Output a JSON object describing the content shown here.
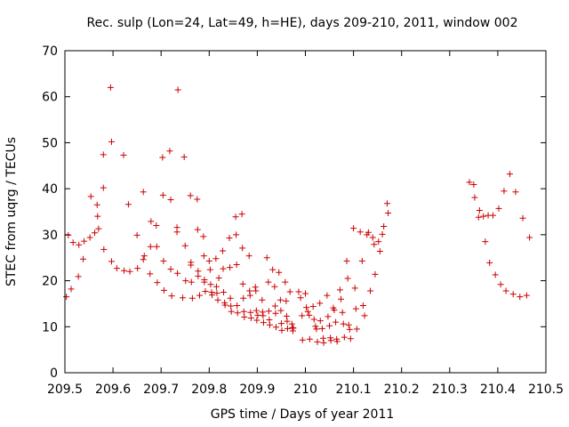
{
  "chart_data": {
    "type": "scatter",
    "title": "Rec. sulp (Lon=24, Lat=49, h=HE), days 209-210, 2011, window 002",
    "xlabel": "GPS time / Days of year 2011",
    "ylabel": "STEC from uqrg / TECUs",
    "xlim": [
      209.5,
      210.5
    ],
    "ylim": [
      0,
      70
    ],
    "x_ticks": [
      "209.5",
      "209.6",
      "209.7",
      "209.8",
      "209.9",
      "210",
      "210.1",
      "210.2",
      "210.3",
      "210.4",
      "210.5"
    ],
    "x_tick_values": [
      209.5,
      209.6,
      209.7,
      209.8,
      209.9,
      210.0,
      210.1,
      210.2,
      210.3,
      210.4,
      210.5
    ],
    "y_ticks": [
      "0",
      "10",
      "20",
      "30",
      "40",
      "50",
      "60",
      "70"
    ],
    "y_tick_values": [
      0,
      10,
      20,
      30,
      40,
      50,
      60,
      70
    ],
    "grid": false,
    "marker": "+",
    "color": "#cc0000",
    "points": [
      [
        209.503,
        16.5
      ],
      [
        209.507,
        29.9
      ],
      [
        209.513,
        18.2
      ],
      [
        209.517,
        28.3
      ],
      [
        209.528,
        20.9
      ],
      [
        209.529,
        27.8
      ],
      [
        209.538,
        24.7
      ],
      [
        209.54,
        28.6
      ],
      [
        209.552,
        29.4
      ],
      [
        209.554,
        38.3
      ],
      [
        209.562,
        30.4
      ],
      [
        209.567,
        36.5
      ],
      [
        209.568,
        34.0
      ],
      [
        209.57,
        31.3
      ],
      [
        209.58,
        40.2
      ],
      [
        209.58,
        47.4
      ],
      [
        209.581,
        26.8
      ],
      [
        209.595,
        62.0
      ],
      [
        209.597,
        50.2
      ],
      [
        209.597,
        24.2
      ],
      [
        209.608,
        22.7
      ],
      [
        209.622,
        47.3
      ],
      [
        209.623,
        22.2
      ],
      [
        209.632,
        36.6
      ],
      [
        209.635,
        22.0
      ],
      [
        209.65,
        29.9
      ],
      [
        209.651,
        22.7
      ],
      [
        209.663,
        39.3
      ],
      [
        209.663,
        24.6
      ],
      [
        209.665,
        25.4
      ],
      [
        209.677,
        21.5
      ],
      [
        209.678,
        27.4
      ],
      [
        209.679,
        32.9
      ],
      [
        209.69,
        32.0
      ],
      [
        209.691,
        27.4
      ],
      [
        209.692,
        19.6
      ],
      [
        209.703,
        46.8
      ],
      [
        209.704,
        38.6
      ],
      [
        209.705,
        24.3
      ],
      [
        209.706,
        17.9
      ],
      [
        209.718,
        48.2
      ],
      [
        209.72,
        37.6
      ],
      [
        209.72,
        22.5
      ],
      [
        209.722,
        16.7
      ],
      [
        209.735,
        61.5
      ],
      [
        209.733,
        31.6
      ],
      [
        209.733,
        30.6
      ],
      [
        209.734,
        21.6
      ],
      [
        209.745,
        16.3
      ],
      [
        209.748,
        46.9
      ],
      [
        209.75,
        27.6
      ],
      [
        209.751,
        20.0
      ],
      [
        209.761,
        38.5
      ],
      [
        209.762,
        24.0
      ],
      [
        209.762,
        23.4
      ],
      [
        209.763,
        19.7
      ],
      [
        209.765,
        16.2
      ],
      [
        209.775,
        37.7
      ],
      [
        209.776,
        31.1
      ],
      [
        209.777,
        22.1
      ],
      [
        209.777,
        21.0
      ],
      [
        209.78,
        16.8
      ],
      [
        209.788,
        29.6
      ],
      [
        209.789,
        25.4
      ],
      [
        209.79,
        20.2
      ],
      [
        209.79,
        19.7
      ],
      [
        209.792,
        17.7
      ],
      [
        209.8,
        24.3
      ],
      [
        209.802,
        22.4
      ],
      [
        209.803,
        19.2
      ],
      [
        209.805,
        17.5
      ],
      [
        209.806,
        16.9
      ],
      [
        209.814,
        24.8
      ],
      [
        209.815,
        18.7
      ],
      [
        209.816,
        17.3
      ],
      [
        209.818,
        15.8
      ],
      [
        209.82,
        20.6
      ],
      [
        209.828,
        26.5
      ],
      [
        209.829,
        22.6
      ],
      [
        209.83,
        17.5
      ],
      [
        209.832,
        15.2
      ],
      [
        209.833,
        14.7
      ],
      [
        209.842,
        29.3
      ],
      [
        209.843,
        22.9
      ],
      [
        209.844,
        16.2
      ],
      [
        209.845,
        14.5
      ],
      [
        209.846,
        13.3
      ],
      [
        209.855,
        33.9
      ],
      [
        209.856,
        30.0
      ],
      [
        209.857,
        23.5
      ],
      [
        209.858,
        14.6
      ],
      [
        209.859,
        13.0
      ],
      [
        209.868,
        34.5
      ],
      [
        209.869,
        27.1
      ],
      [
        209.87,
        19.3
      ],
      [
        209.871,
        16.2
      ],
      [
        209.872,
        13.3
      ],
      [
        209.873,
        12.1
      ],
      [
        209.883,
        25.4
      ],
      [
        209.884,
        17.8
      ],
      [
        209.885,
        16.8
      ],
      [
        209.886,
        13.1
      ],
      [
        209.887,
        11.9
      ],
      [
        209.896,
        18.6
      ],
      [
        209.897,
        17.8
      ],
      [
        209.898,
        13.5
      ],
      [
        209.899,
        11.4
      ],
      [
        209.901,
        12.5
      ],
      [
        209.91,
        15.8
      ],
      [
        209.911,
        13.2
      ],
      [
        209.912,
        12.4
      ],
      [
        209.913,
        10.9
      ],
      [
        209.92,
        25.0
      ],
      [
        209.923,
        19.7
      ],
      [
        209.924,
        13.4
      ],
      [
        209.925,
        11.5
      ],
      [
        209.926,
        10.4
      ],
      [
        209.932,
        22.4
      ],
      [
        209.936,
        18.7
      ],
      [
        209.937,
        14.5
      ],
      [
        209.938,
        12.9
      ],
      [
        209.939,
        9.9
      ],
      [
        209.945,
        21.8
      ],
      [
        209.948,
        15.8
      ],
      [
        209.949,
        13.5
      ],
      [
        209.95,
        10.7
      ],
      [
        209.951,
        9.2
      ],
      [
        209.958,
        19.7
      ],
      [
        209.96,
        15.6
      ],
      [
        209.961,
        12.3
      ],
      [
        209.962,
        11.2
      ],
      [
        209.963,
        9.6
      ],
      [
        209.968,
        17.6
      ],
      [
        209.972,
        10.6
      ],
      [
        209.973,
        9.8
      ],
      [
        209.974,
        9.1
      ],
      [
        209.975,
        9.7
      ],
      [
        209.986,
        17.6
      ],
      [
        209.99,
        16.3
      ],
      [
        209.993,
        12.4
      ],
      [
        209.994,
        7.1
      ],
      [
        210.0,
        17.2
      ],
      [
        210.002,
        14.2
      ],
      [
        210.005,
        13.3
      ],
      [
        210.008,
        12.5
      ],
      [
        210.009,
        7.3
      ],
      [
        210.016,
        14.4
      ],
      [
        210.018,
        11.6
      ],
      [
        210.021,
        10.1
      ],
      [
        210.023,
        9.5
      ],
      [
        210.025,
        6.7
      ],
      [
        210.03,
        15.1
      ],
      [
        210.031,
        11.3
      ],
      [
        210.035,
        9.6
      ],
      [
        210.037,
        7.5
      ],
      [
        210.038,
        6.5
      ],
      [
        210.045,
        16.8
      ],
      [
        210.047,
        12.2
      ],
      [
        210.05,
        10.2
      ],
      [
        210.052,
        7.6
      ],
      [
        210.053,
        7.0
      ],
      [
        210.058,
        14.1
      ],
      [
        210.06,
        13.6
      ],
      [
        210.063,
        11.0
      ],
      [
        210.065,
        7.3
      ],
      [
        210.066,
        6.8
      ],
      [
        210.072,
        18.0
      ],
      [
        210.074,
        16.0
      ],
      [
        210.077,
        13.1
      ],
      [
        210.079,
        10.6
      ],
      [
        210.081,
        7.7
      ],
      [
        210.086,
        24.3
      ],
      [
        210.088,
        20.5
      ],
      [
        210.09,
        10.4
      ],
      [
        210.092,
        9.4
      ],
      [
        210.094,
        7.4
      ],
      [
        210.1,
        31.4
      ],
      [
        210.103,
        18.4
      ],
      [
        210.105,
        13.9
      ],
      [
        210.107,
        9.5
      ],
      [
        210.114,
        30.6
      ],
      [
        210.118,
        24.3
      ],
      [
        210.12,
        14.6
      ],
      [
        210.123,
        12.4
      ],
      [
        210.128,
        30.0
      ],
      [
        210.131,
        30.5
      ],
      [
        210.135,
        17.8
      ],
      [
        210.14,
        29.4
      ],
      [
        210.143,
        27.9
      ],
      [
        210.145,
        21.4
      ],
      [
        210.152,
        28.5
      ],
      [
        210.155,
        26.4
      ],
      [
        210.16,
        30.1
      ],
      [
        210.163,
        31.8
      ],
      [
        210.17,
        36.8
      ],
      [
        210.172,
        34.7
      ],
      [
        210.341,
        41.4
      ],
      [
        210.35,
        40.9
      ],
      [
        210.352,
        38.1
      ],
      [
        210.36,
        33.8
      ],
      [
        210.362,
        35.3
      ],
      [
        210.37,
        34.0
      ],
      [
        210.374,
        28.5
      ],
      [
        210.38,
        34.2
      ],
      [
        210.383,
        23.9
      ],
      [
        210.39,
        34.2
      ],
      [
        210.395,
        21.3
      ],
      [
        210.402,
        35.7
      ],
      [
        210.406,
        19.2
      ],
      [
        210.413,
        39.5
      ],
      [
        210.417,
        17.8
      ],
      [
        210.425,
        43.2
      ],
      [
        210.432,
        17.1
      ],
      [
        210.437,
        39.3
      ],
      [
        210.446,
        16.5
      ],
      [
        210.452,
        33.6
      ],
      [
        210.46,
        16.8
      ],
      [
        210.466,
        29.4
      ]
    ]
  }
}
